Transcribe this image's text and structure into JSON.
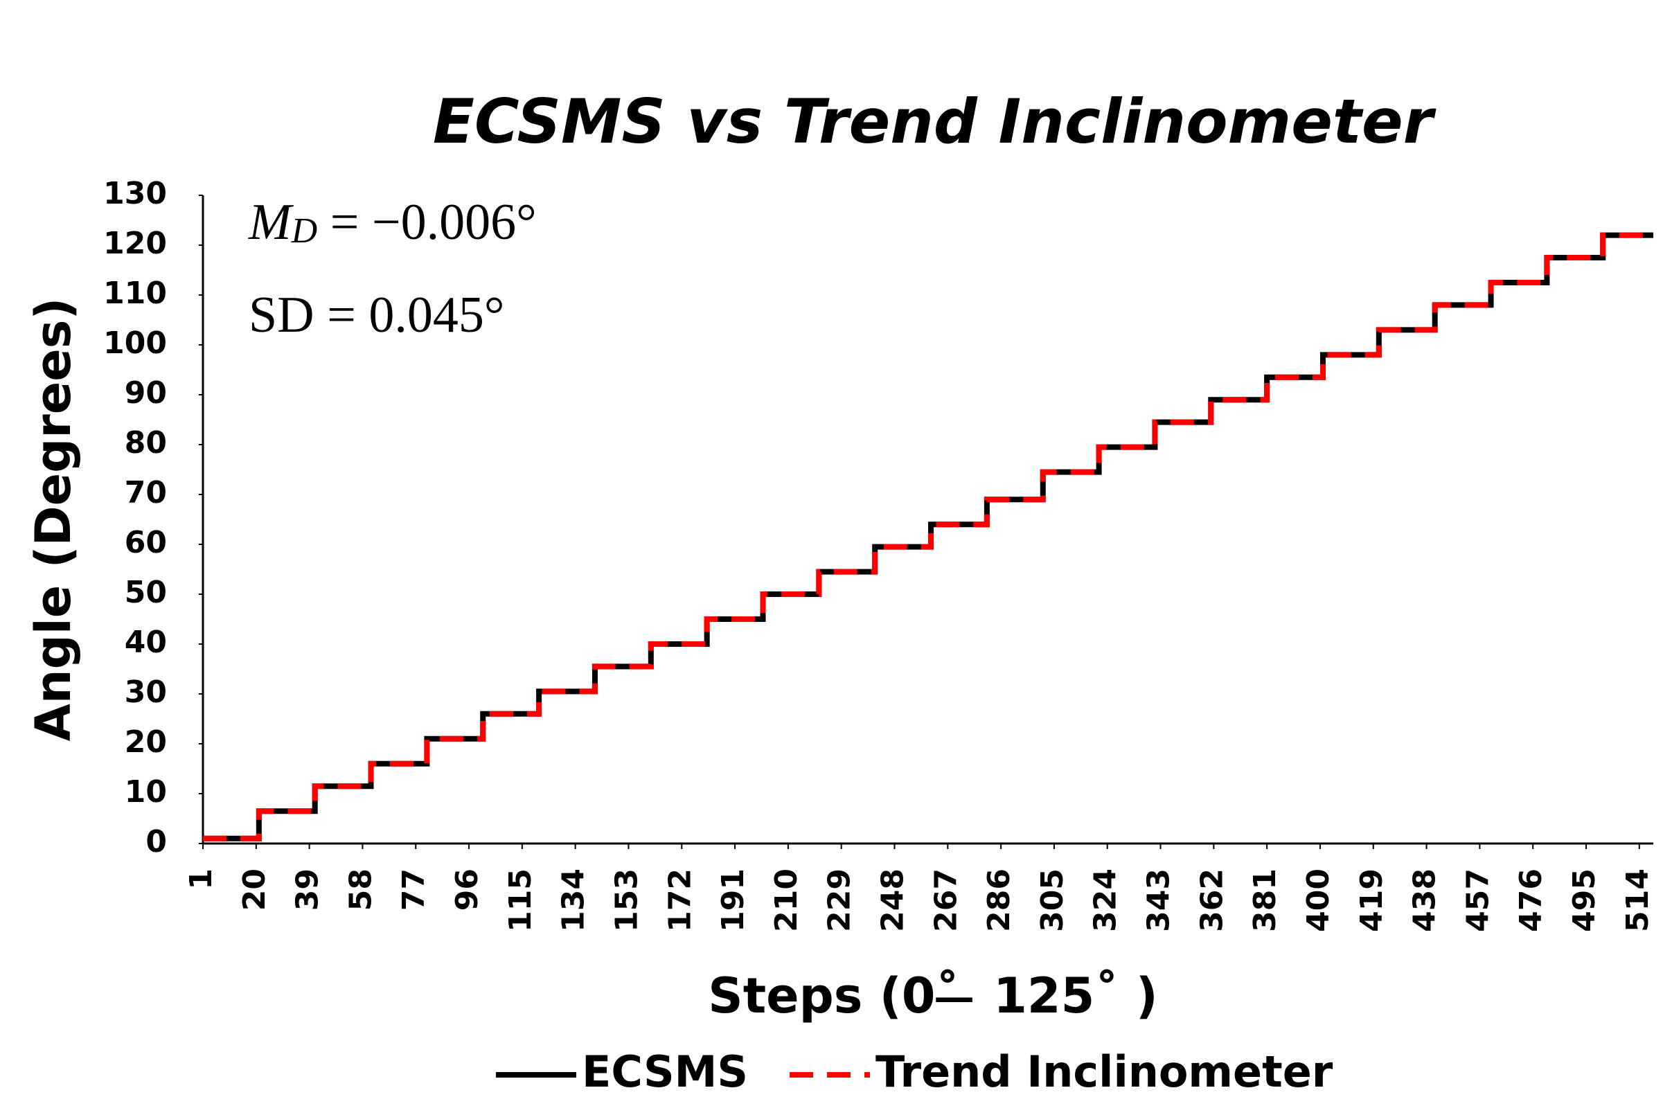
{
  "chart_data": {
    "type": "line",
    "title": "ECSMS vs Trend Inclinometer",
    "x_label": "Steps (0˚ ̶ 125˚ )",
    "y_label": "Angle (Degrees)",
    "annotations": [
      [
        "M",
        "D",
        " = −0.006°"
      ],
      [
        "SD = 0.045°"
      ]
    ],
    "x": [
      1,
      21,
      21,
      41,
      41,
      61,
      61,
      81,
      81,
      101,
      101,
      121,
      121,
      141,
      141,
      161,
      161,
      181,
      181,
      201,
      201,
      221,
      221,
      241,
      241,
      261,
      261,
      281,
      281,
      301,
      301,
      321,
      321,
      341,
      341,
      361,
      361,
      381,
      381,
      401,
      401,
      421,
      421,
      441,
      441,
      461,
      461,
      481,
      481,
      501,
      501,
      519
    ],
    "xlim": [
      1,
      519
    ],
    "xticks": [
      1,
      20,
      39,
      58,
      77,
      96,
      115,
      134,
      153,
      172,
      191,
      210,
      229,
      248,
      267,
      286,
      305,
      324,
      343,
      362,
      381,
      400,
      419,
      438,
      457,
      476,
      495,
      514
    ],
    "ylim": [
      0,
      130
    ],
    "yticks": [
      0,
      10,
      20,
      30,
      40,
      50,
      60,
      70,
      80,
      90,
      100,
      110,
      120,
      130
    ],
    "legend": "bottom",
    "series": [
      {
        "name": "ECSMS",
        "color": "#000000",
        "dash": false,
        "values": [
          1,
          1,
          6.5,
          6.5,
          11.5,
          11.5,
          16,
          16,
          21,
          21,
          26,
          26,
          30.5,
          30.5,
          35.5,
          35.5,
          40,
          40,
          45,
          45,
          50,
          50,
          54.5,
          54.5,
          59.5,
          59.5,
          64,
          64,
          69,
          69,
          74.5,
          74.5,
          79.5,
          79.5,
          84.5,
          84.5,
          89,
          89,
          93.5,
          93.5,
          98,
          98,
          103,
          103,
          108,
          108,
          112.5,
          112.5,
          117.5,
          117.5,
          122,
          122
        ]
      },
      {
        "name": "Trend Inclinometer",
        "color": "#ff0000",
        "dash": true,
        "values": [
          1,
          1,
          6.5,
          6.5,
          11.5,
          11.5,
          16,
          16,
          21,
          21,
          26,
          26,
          30.5,
          30.5,
          35.5,
          35.5,
          40,
          40,
          45,
          45,
          50,
          50,
          54.5,
          54.5,
          59.5,
          59.5,
          64,
          64,
          69,
          69,
          74.5,
          74.5,
          79.5,
          79.5,
          84.5,
          84.5,
          89,
          89,
          93.5,
          93.5,
          98,
          98,
          103,
          103,
          108,
          108,
          112.5,
          112.5,
          117.5,
          117.5,
          122,
          122
        ]
      }
    ]
  }
}
